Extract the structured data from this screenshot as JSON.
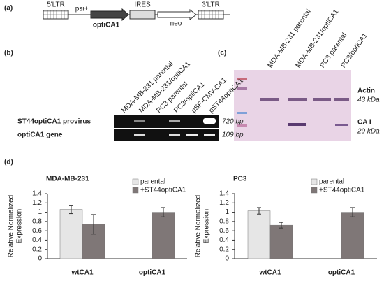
{
  "panel_labels": [
    "(a)",
    "(b)",
    "(c)",
    "(d)"
  ],
  "construct": {
    "ltr5": "5'LTR",
    "psi": "psi+",
    "gene": "optiCA1",
    "ires": "IRES",
    "neo": "neo",
    "ltr3": "3'LTR"
  },
  "gel": {
    "lanes": [
      "MDA-MB-231 parental",
      "MDA-MB-231/optiCA1",
      "PC3 parental",
      "PC3/optiCA1",
      "pSF-CMV-CA1",
      "pST44optiCA1"
    ],
    "rows": [
      {
        "label": "ST44optiCA1 provirus",
        "size": "720 bp"
      },
      {
        "label": "optiCA1 gene",
        "size": "109 bp"
      }
    ]
  },
  "blot": {
    "lanes": [
      "MDA-MB-231 parental",
      "MDA-MB-231/optiCA1",
      "PC3 parental",
      "PC3/optiCA1"
    ],
    "markers": [
      {
        "label": "Actin",
        "size": "43 kDa"
      },
      {
        "label": "CA I",
        "size": "29 kDa"
      }
    ]
  },
  "chart_data": [
    {
      "type": "bar",
      "title": "MDA-MB-231",
      "y_label": [
        "Relative Normalized",
        "Expression"
      ],
      "categories": [
        "wtCA1",
        "optiCA1"
      ],
      "series": [
        {
          "name": "parental",
          "color": "#e6e6e6",
          "values": [
            1.06,
            null
          ],
          "errors": [
            0.09,
            null
          ]
        },
        {
          "name": "+ST44optiCA1",
          "color": "#7f7777",
          "values": [
            0.74,
            1.0
          ],
          "errors": [
            0.21,
            0.1
          ]
        }
      ],
      "ylim": [
        0,
        1.4
      ],
      "yticks": [
        0,
        0.2,
        0.4,
        0.6,
        0.8,
        1,
        1.2,
        1.4
      ]
    },
    {
      "type": "bar",
      "title": "PC3",
      "y_label": [
        "Relative Normalized",
        "Expression"
      ],
      "categories": [
        "wtCA1",
        "optiCA1"
      ],
      "series": [
        {
          "name": "parental",
          "color": "#e6e6e6",
          "values": [
            1.03,
            null
          ],
          "errors": [
            0.07,
            null
          ]
        },
        {
          "name": "+ST44optiCA1",
          "color": "#7f7777",
          "values": [
            0.72,
            1.0
          ],
          "errors": [
            0.06,
            0.1
          ]
        }
      ],
      "ylim": [
        0,
        1.4
      ],
      "yticks": [
        0,
        0.2,
        0.4,
        0.6,
        0.8,
        1,
        1.2,
        1.4
      ]
    }
  ]
}
